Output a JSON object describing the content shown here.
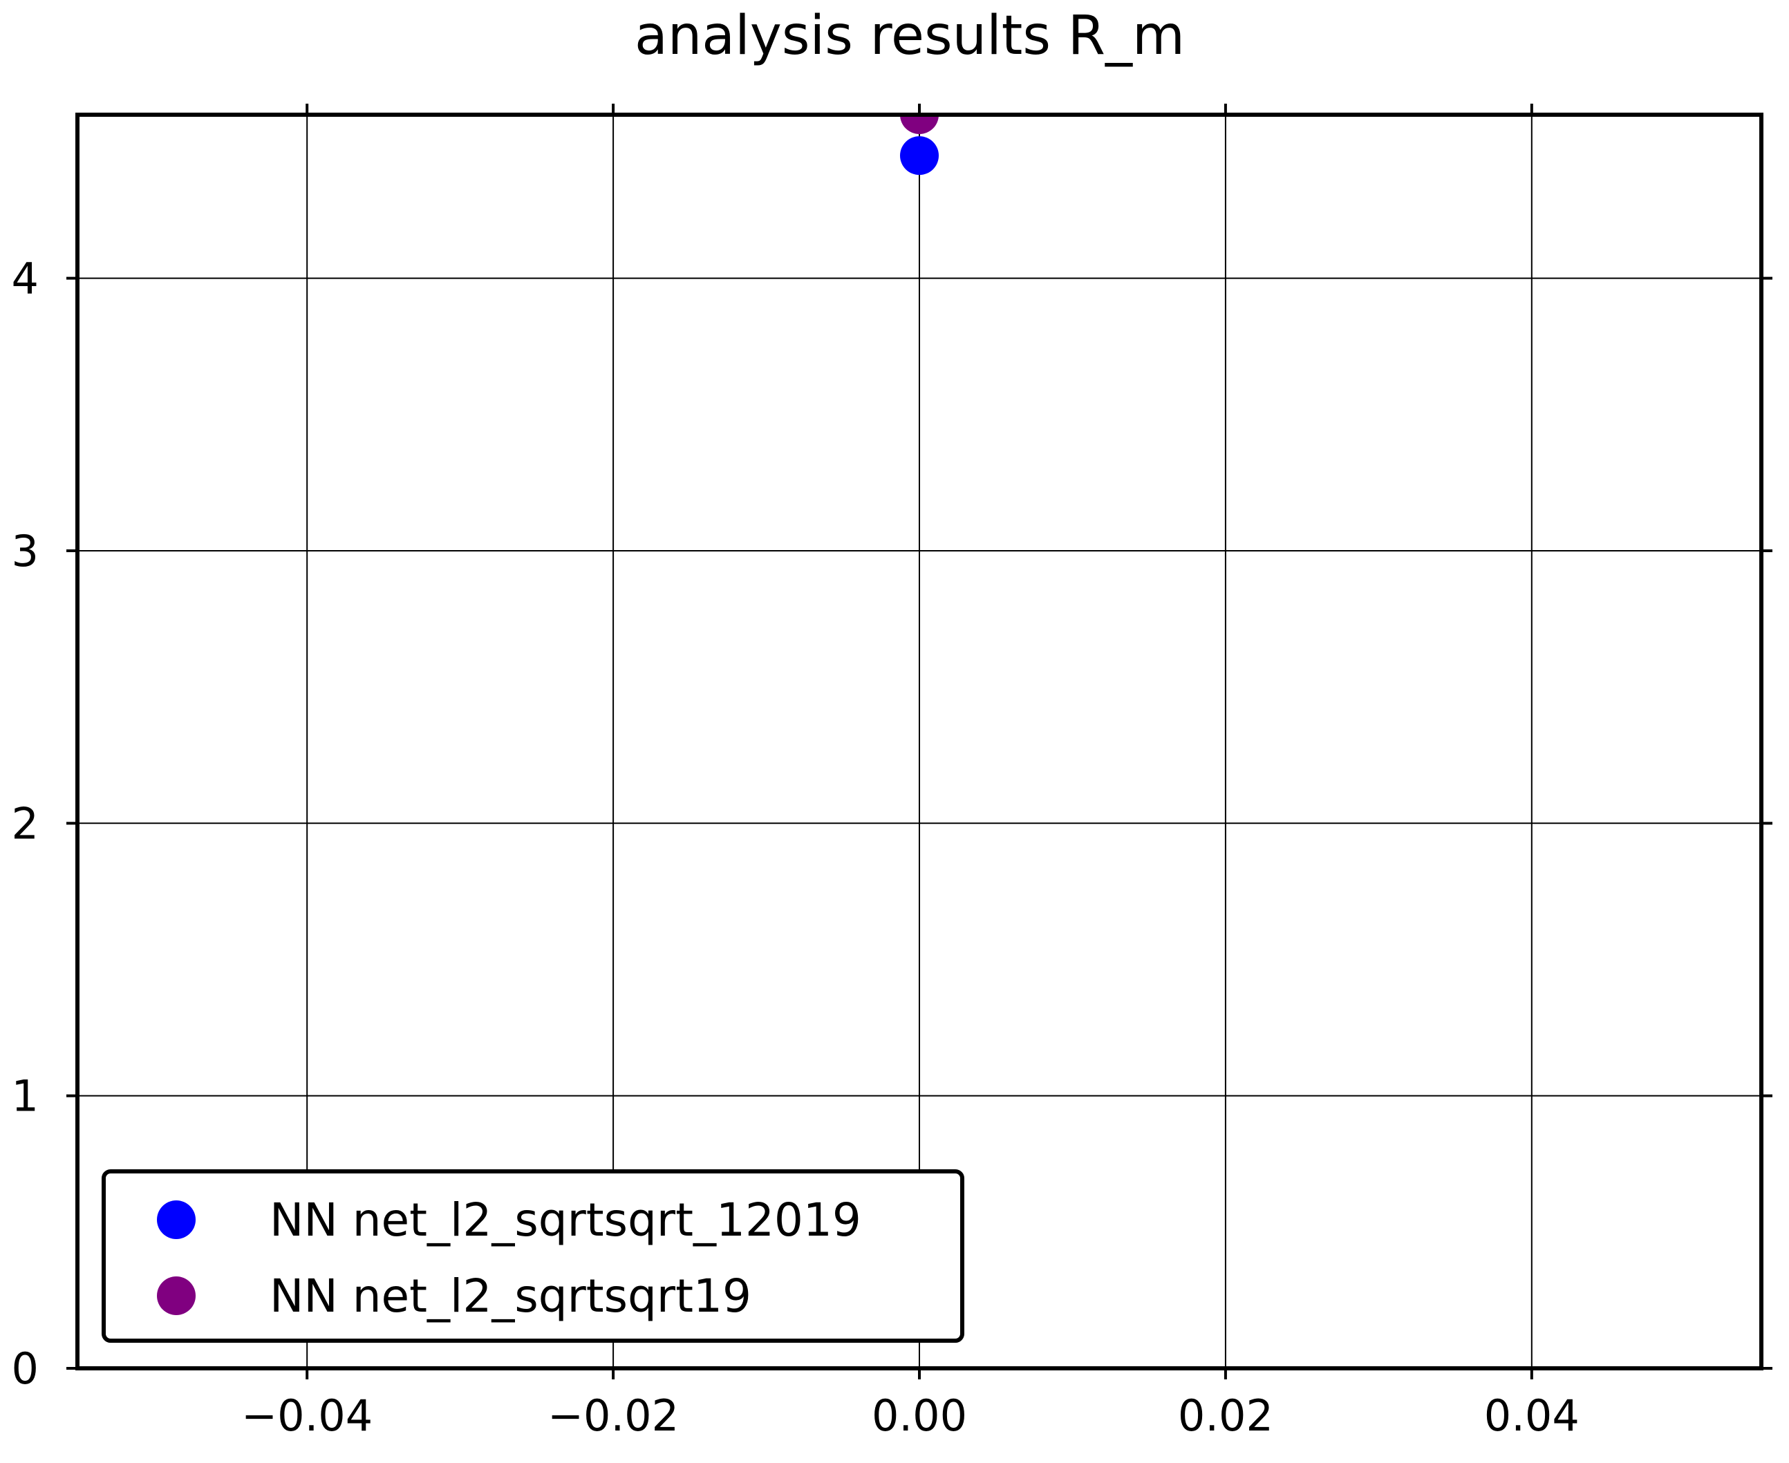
{
  "chart_data": {
    "type": "scatter",
    "title": "analysis results R_m",
    "xlabel": "",
    "ylabel": "",
    "xlim": [
      -0.055,
      0.055
    ],
    "ylim": [
      0,
      4.6
    ],
    "grid": true,
    "legend_position": "lower-left",
    "x_ticks": [
      {
        "value": -0.04,
        "label": "−0.04"
      },
      {
        "value": -0.02,
        "label": "−0.02"
      },
      {
        "value": 0.0,
        "label": "0.00"
      },
      {
        "value": 0.02,
        "label": "0.02"
      },
      {
        "value": 0.04,
        "label": "0.04"
      }
    ],
    "y_ticks": [
      {
        "value": 0,
        "label": "0"
      },
      {
        "value": 1,
        "label": "1"
      },
      {
        "value": 2,
        "label": "2"
      },
      {
        "value": 3,
        "label": "3"
      },
      {
        "value": 4,
        "label": "4"
      }
    ],
    "series": [
      {
        "name": "NN net_l2_sqrtsqrt_12019",
        "color": "#0000ff",
        "points": [
          {
            "x": 0.0,
            "y": 4.45
          }
        ]
      },
      {
        "name": "NN net_l2_sqrtsqrt19",
        "color": "#800080",
        "points": [
          {
            "x": 0.0,
            "y": 4.6
          }
        ]
      }
    ]
  }
}
